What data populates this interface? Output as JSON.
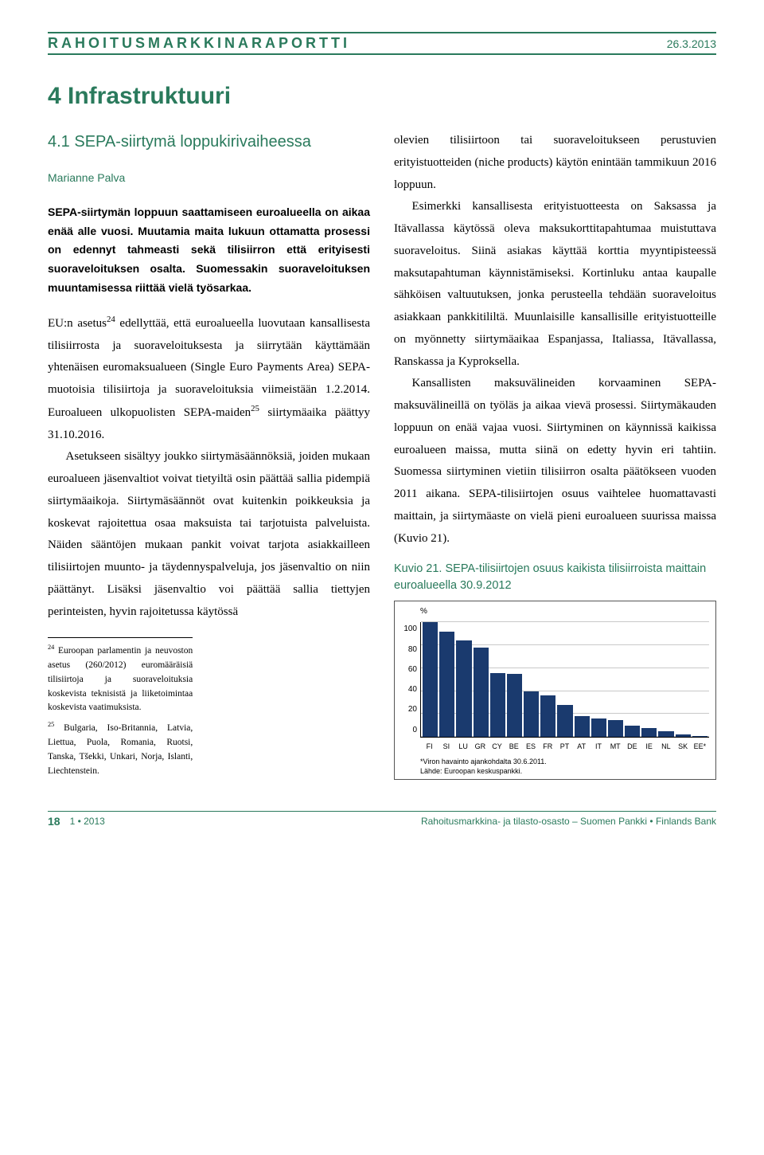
{
  "header": {
    "title": "RAHOITUSMARKKINARAPORTTI",
    "date": "26.3.2013"
  },
  "section": {
    "number_title": "4 Infrastruktuuri",
    "subsection": "4.1 SEPA-siirtymä loppukirivaiheessa",
    "author": "Marianne Palva"
  },
  "lead": "SEPA-siirtymän loppuun saattamiseen euroalueella on aikaa enää alle vuosi. Muutamia maita lukuun ottamatta prosessi on edennyt tahmeasti sekä tilisiirron että erityisesti suoraveloituksen osalta. Suomessakin suoraveloituksen muuntamisessa riittää vielä työsarkaa.",
  "col1": {
    "p1_a": "EU:n asetus",
    "p1_sup": "24",
    "p1_b": " edellyttää, että euroalueella luovutaan kansallisesta tilisiirrosta ja suoraveloituksesta ja siirrytään käyttämään yhtenäisen euromaksualueen (Single Euro Payments Area) SEPA-muotoisia tilisiirtoja ja suoraveloituksia viimeistään 1.2.2014. Euroalueen ulkopuolisten SEPA-maiden",
    "p1_sup2": "25",
    "p1_c": " siirtymäaika päättyy 31.10.2016.",
    "p2": "Asetukseen sisältyy joukko siirtymäsäännöksiä, joiden mukaan euroalueen jäsenvaltiot voivat tietyiltä osin päättää sallia pidempiä siirtymäaikoja. Siirtymäsäännöt ovat kuitenkin poikkeuksia ja koskevat rajoitettua osaa maksuista tai tarjotuista palveluista. Näiden sääntöjen mukaan pankit voivat tarjota asiakkailleen tilisiirtojen muunto- ja täydennyspalveluja, jos jäsenvaltio on niin päättänyt. Lisäksi jäsenvaltio voi päättää sallia tiettyjen perinteisten, hyvin rajoitetussa käytössä"
  },
  "col2": {
    "p1": "olevien tilisiirtoon tai suoraveloitukseen perustuvien erityistuotteiden (niche products) käytön enintään tammikuun 2016 loppuun.",
    "p2": "Esimerkki kansallisesta erityistuotteesta on Saksassa ja Itävallassa käytössä oleva maksukorttitapahtumaa muistuttava suoraveloitus. Siinä asiakas käyttää korttia myyntipisteessä maksutapahtuman käynnistämiseksi. Kortinluku antaa kaupalle sähköisen valtuutuksen, jonka perusteella tehdään suoraveloitus asiakkaan pankkitililtä. Muunlaisille kansallisille erityistuotteille on myönnetty siirtymäaikaa Espanjassa, Italiassa, Itävallassa, Ranskassa ja Kyproksella.",
    "p3": "Kansallisten maksuvälineiden korvaaminen SEPA-maksuvälineillä on työläs ja aikaa vievä prosessi. Siirtymäkauden loppuun on enää vajaa vuosi. Siirtyminen on käynnissä kaikissa euroalueen maissa, mutta siinä on edetty hyvin eri tahtiin. Suomessa siirtyminen vietiin tilisiirron osalta päätökseen vuoden 2011 aikana. SEPA-tilisiirtojen osuus vaihtelee huomattavasti maittain, ja siirtymäaste on vielä pieni euroalueen suurissa maissa (Kuvio 21)."
  },
  "footnotes": {
    "f24_sup": "24",
    "f24": " Euroopan parlamentin ja neuvoston asetus (260/2012) euromääräisiä tilisiirtoja ja suoraveloituksia koskevista teknisistä ja liiketoimintaa koskevista vaatimuksista.",
    "f25_sup": "25",
    "f25": " Bulgaria, Iso-Britannia, Latvia, Liettua, Puola, Romania, Ruotsi, Tanska, Tšekki, Unkari, Norja, Islanti, Liechtenstein."
  },
  "chart": {
    "caption": "Kuvio 21. SEPA-tilisiirtojen osuus kaikista tilisiirroista maittain euroalueella 30.9.2012",
    "type": "bar",
    "y_unit": "%",
    "ylim": [
      0,
      100
    ],
    "ytick_step": 20,
    "yticks": [
      "100",
      "80",
      "60",
      "40",
      "20",
      "0"
    ],
    "categories": [
      "FI",
      "SI",
      "LU",
      "GR",
      "CY",
      "BE",
      "ES",
      "FR",
      "PT",
      "AT",
      "IT",
      "MT",
      "DE",
      "IE",
      "NL",
      "SK",
      "EE"
    ],
    "last_label_suffix": "*",
    "values": [
      100,
      92,
      84,
      78,
      56,
      55,
      40,
      36,
      28,
      18,
      16,
      15,
      10,
      8,
      5,
      2,
      1
    ],
    "bar_color": "#1a3a6e",
    "grid_color": "#c9c9c9",
    "background_color": "#ffffff",
    "note1": "*Viron havainto ajankohdalta 30.6.2011.",
    "note2": "Lähde: Euroopan keskuspankki."
  },
  "footer": {
    "page": "18",
    "issue": "1 • 2013",
    "right": "Rahoitusmarkkina- ja tilasto-osasto – Suomen Pankki • Finlands Bank"
  }
}
